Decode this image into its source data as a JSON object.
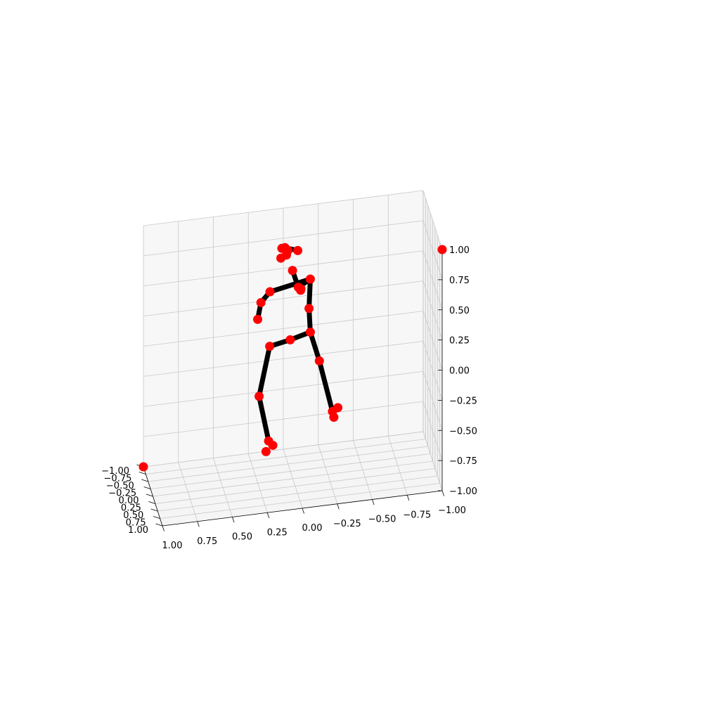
{
  "chart_data": {
    "type": "scatter",
    "projection": "3d",
    "title": "",
    "xlabel": "",
    "ylabel": "",
    "zlabel": "",
    "xlim": [
      -1,
      1
    ],
    "ylim": [
      -1,
      1
    ],
    "zlim": [
      -1,
      1
    ],
    "grid": true,
    "legend": "none",
    "colors": {
      "points": "#ff0000",
      "bones": "#000000",
      "pane_back": "#f7f7f7",
      "pane_side": "#f2f2f2",
      "pane_floor": "#f5f5f5",
      "grid": "#c8c8c8"
    },
    "x_ticks": [
      "1.00",
      "0.75",
      "0.50",
      "0.25",
      "0.00",
      "−0.25",
      "−0.50",
      "−0.75",
      "−1.00"
    ],
    "y_ticks": [
      "1.00",
      "0.75",
      "0.50",
      "0.25",
      "0.00",
      "−0.25",
      "−0.50",
      "−0.75",
      "−1.00"
    ],
    "z_ticks": [
      "1.00",
      "0.75",
      "0.50",
      "0.25",
      "0.00",
      "−0.25",
      "−0.50",
      "−0.75",
      "−1.00"
    ],
    "corner_points": [
      {
        "x": -1,
        "y": 1,
        "z": 1
      },
      {
        "x": 1,
        "y": -1,
        "z": -1
      }
    ],
    "joints": [
      {
        "name": "pelvis",
        "x": 0.02,
        "y": 0.02,
        "z": 0.16
      },
      {
        "name": "right_hip",
        "x": 0.17,
        "y": 0.07,
        "z": 0.14
      },
      {
        "name": "right_knee",
        "x": 0.26,
        "y": 0.28,
        "z": -0.21
      },
      {
        "name": "right_ankle",
        "x": 0.2,
        "y": 0.4,
        "z": -0.56
      },
      {
        "name": "right_heel",
        "x": 0.22,
        "y": 0.42,
        "z": -0.64
      },
      {
        "name": "right_toe",
        "x": 0.17,
        "y": 0.4,
        "z": -0.6
      },
      {
        "name": "left_hip",
        "x": -0.13,
        "y": -0.07,
        "z": 0.18
      },
      {
        "name": "left_knee",
        "x": -0.19,
        "y": 0.0,
        "z": -0.05
      },
      {
        "name": "left_ankle",
        "x": -0.28,
        "y": 0.05,
        "z": -0.47
      },
      {
        "name": "left_heel",
        "x": -0.29,
        "y": 0.05,
        "z": -0.52
      },
      {
        "name": "left_toe",
        "x": -0.32,
        "y": 0.03,
        "z": -0.45
      },
      {
        "name": "spine",
        "x": -0.12,
        "y": -0.06,
        "z": 0.38
      },
      {
        "name": "neck",
        "x": -0.13,
        "y": -0.07,
        "z": 0.62
      },
      {
        "name": "nose",
        "x": 0.0,
        "y": -0.03,
        "z": 0.72
      },
      {
        "name": "head_top",
        "x": 0.06,
        "y": 0.06,
        "z": 0.94
      },
      {
        "name": "left_ear",
        "x": 0.09,
        "y": 0.07,
        "z": 0.86
      },
      {
        "name": "right_ear",
        "x": 0.05,
        "y": 0.07,
        "z": 0.88
      },
      {
        "name": "left_eye",
        "x": 0.04,
        "y": 0.08,
        "z": 0.92
      },
      {
        "name": "right_eye",
        "x": 0.08,
        "y": 0.03,
        "z": 0.93
      },
      {
        "name": "head_back",
        "x": -0.04,
        "y": -0.07,
        "z": 0.87
      },
      {
        "name": "left_shoulder",
        "x": -0.04,
        "y": -0.01,
        "z": 0.58
      },
      {
        "name": "left_elbow",
        "x": -0.06,
        "y": -0.03,
        "z": 0.56
      },
      {
        "name": "left_wrist",
        "x": -0.06,
        "y": -0.06,
        "z": 0.54
      },
      {
        "name": "right_shoulder",
        "x": 0.17,
        "y": 0.1,
        "z": 0.6
      },
      {
        "name": "right_elbow",
        "x": 0.24,
        "y": 0.18,
        "z": 0.54
      },
      {
        "name": "right_wrist",
        "x": 0.27,
        "y": 0.28,
        "z": 0.43
      }
    ],
    "bones": [
      [
        "pelvis",
        "right_hip"
      ],
      [
        "right_hip",
        "right_knee"
      ],
      [
        "right_knee",
        "right_ankle"
      ],
      [
        "pelvis",
        "left_hip"
      ],
      [
        "left_hip",
        "left_knee"
      ],
      [
        "left_knee",
        "left_ankle"
      ],
      [
        "left_hip",
        "spine"
      ],
      [
        "spine",
        "neck"
      ],
      [
        "neck",
        "right_shoulder"
      ],
      [
        "neck",
        "left_shoulder"
      ],
      [
        "right_shoulder",
        "right_elbow"
      ],
      [
        "right_elbow",
        "right_wrist"
      ],
      [
        "head_top",
        "head_back"
      ],
      [
        "nose",
        "left_shoulder"
      ]
    ]
  }
}
